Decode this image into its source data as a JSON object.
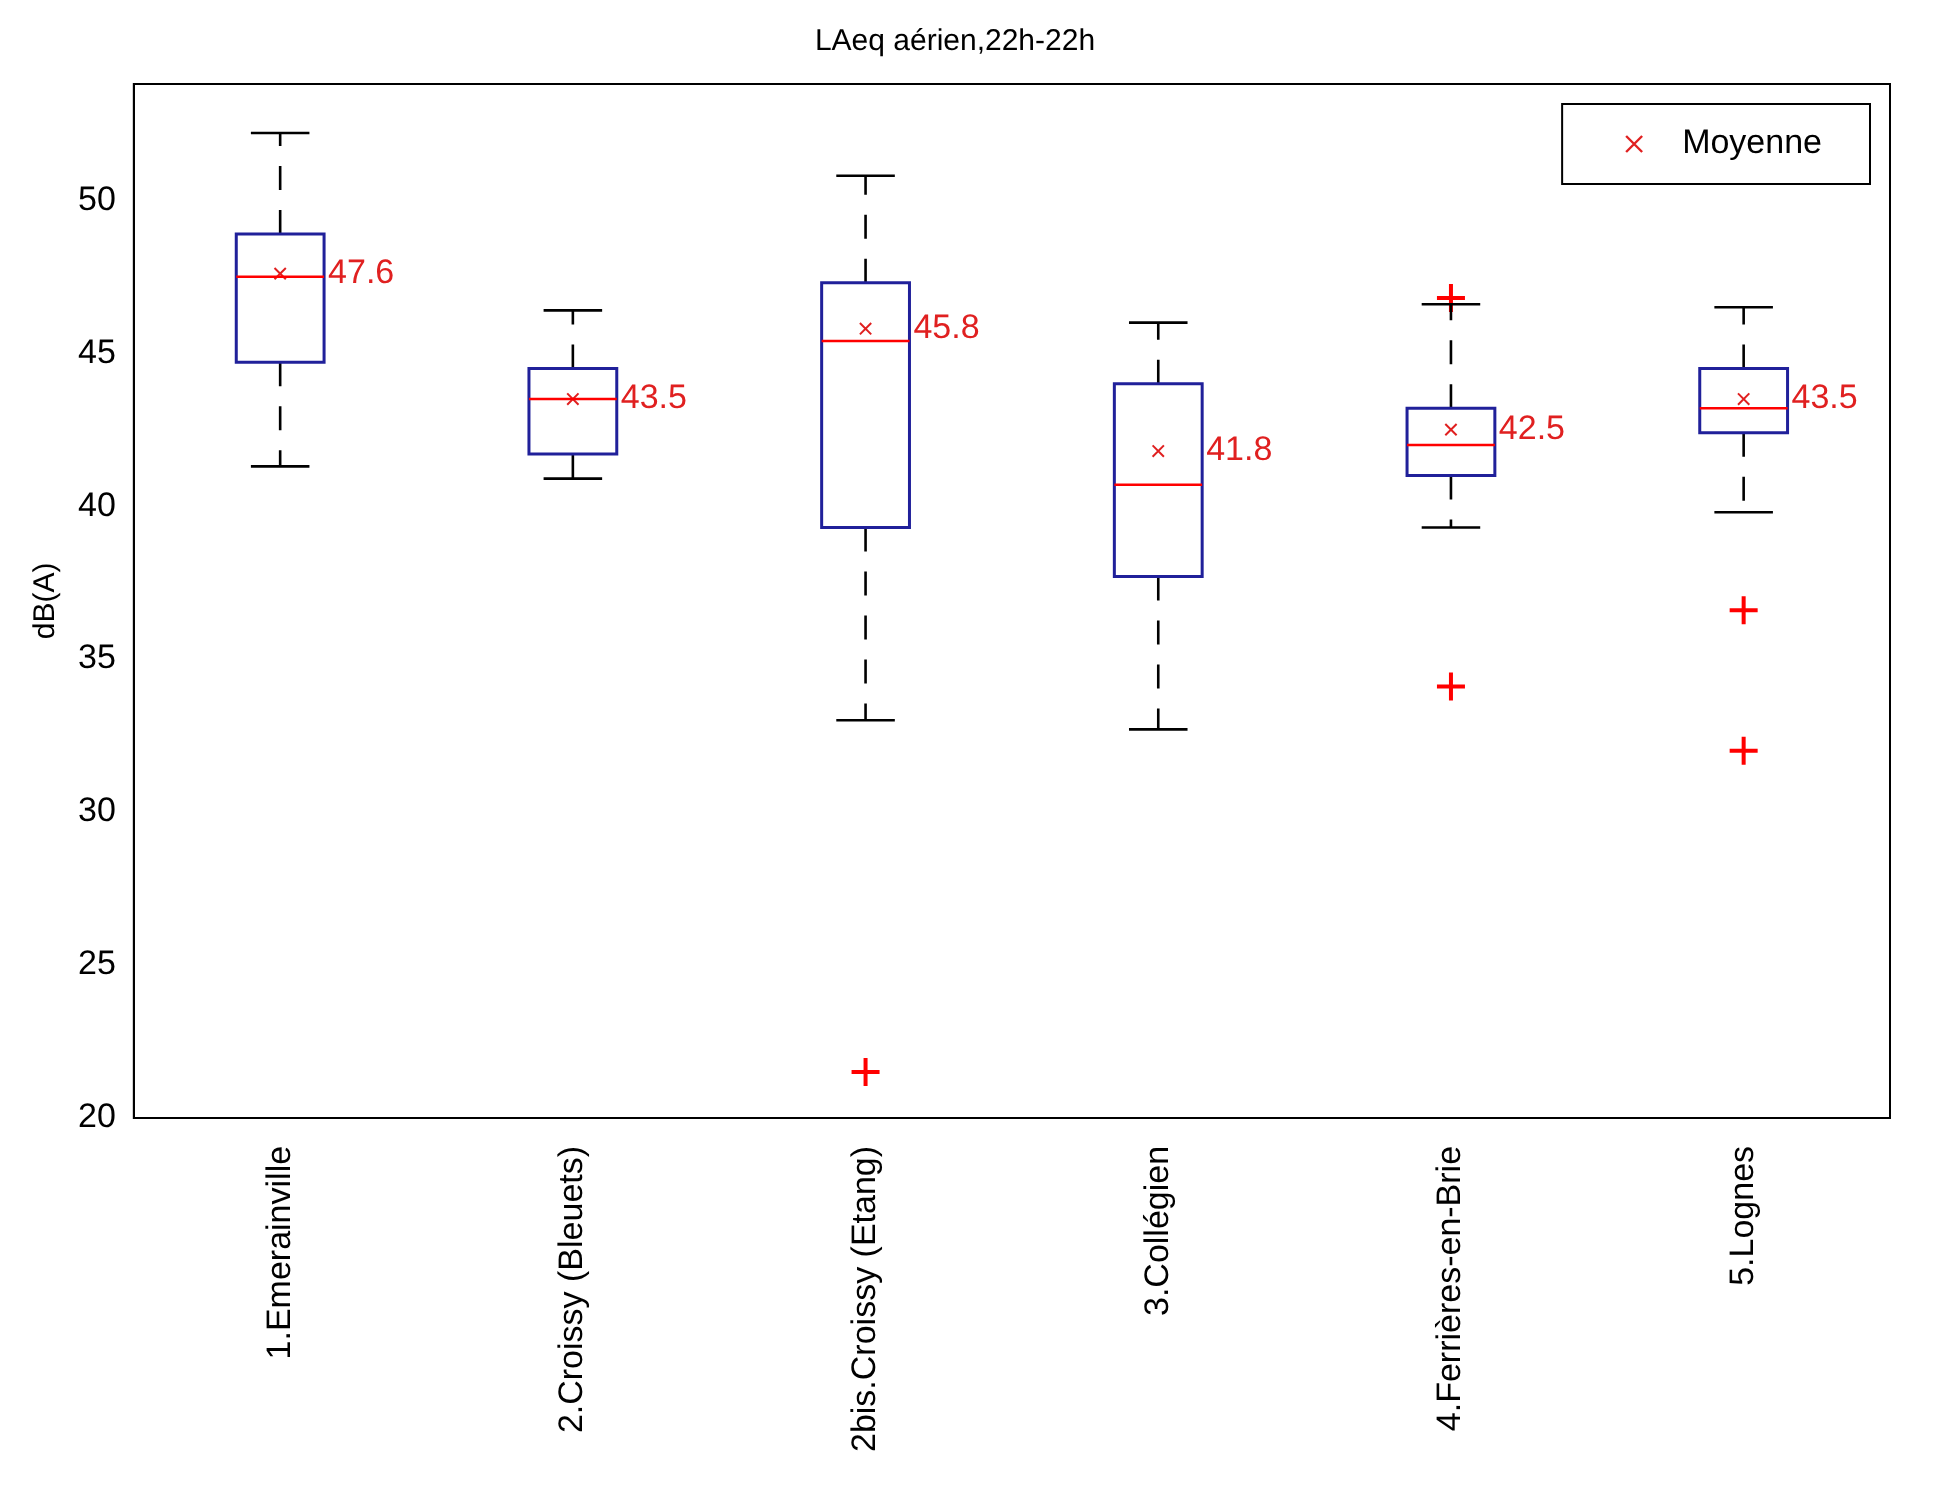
{
  "chart_data": {
    "type": "box",
    "title": "LAeq aérien,22h-22h",
    "ylabel": "dB(A)",
    "categories": [
      "1.Emerainville",
      "2.Croissy (Bleuets)",
      "2bis.Croissy (Etang)",
      "3.Collégien",
      "4.Ferrières-en-Brie",
      "5.Lognes"
    ],
    "ylim": [
      20,
      53.8
    ],
    "yticks": [
      20,
      25,
      30,
      35,
      40,
      45,
      50
    ],
    "grid": false,
    "legend": "top right",
    "series": [
      {
        "type": "box",
        "color": "#20209a",
        "boxes": [
          {
            "low": 41.3,
            "q1": 44.7,
            "median": 47.5,
            "q3": 48.9,
            "high": 52.2
          },
          {
            "low": 40.9,
            "q1": 41.7,
            "median": 43.5,
            "q3": 44.5,
            "high": 46.4
          },
          {
            "low": 33.0,
            "q1": 39.3,
            "median": 45.4,
            "q3": 47.3,
            "high": 50.8,
            "outliers": [
              21.5
            ]
          },
          {
            "low": 32.7,
            "q1": 37.7,
            "median": 40.7,
            "q3": 44.0,
            "high": 46.0
          },
          {
            "low": 39.3,
            "q1": 41.0,
            "median": 42.0,
            "q3": 43.2,
            "high": 46.6,
            "outliers": [
              46.8,
              34.1
            ]
          },
          {
            "low": 39.8,
            "q1": 42.4,
            "median": 43.2,
            "q3": 44.5,
            "high": 46.5,
            "outliers": [
              36.6,
              32.0
            ]
          }
        ]
      },
      {
        "type": "scatter",
        "name": "Moyenne",
        "color": "#e02020",
        "marker": "cross",
        "x": [
          "1.Emerainville",
          "2.Croissy (Bleuets)",
          "2bis.Croissy (Etang)",
          "3.Collégien",
          "4.Ferrières-en-Brie",
          "5.Lognes"
        ],
        "values": [
          47.6,
          43.5,
          45.8,
          41.8,
          42.5,
          43.5
        ],
        "value_labels": [
          "47.6",
          "43.5",
          "45.8",
          "41.8",
          "42.5",
          "43.5"
        ]
      }
    ]
  }
}
